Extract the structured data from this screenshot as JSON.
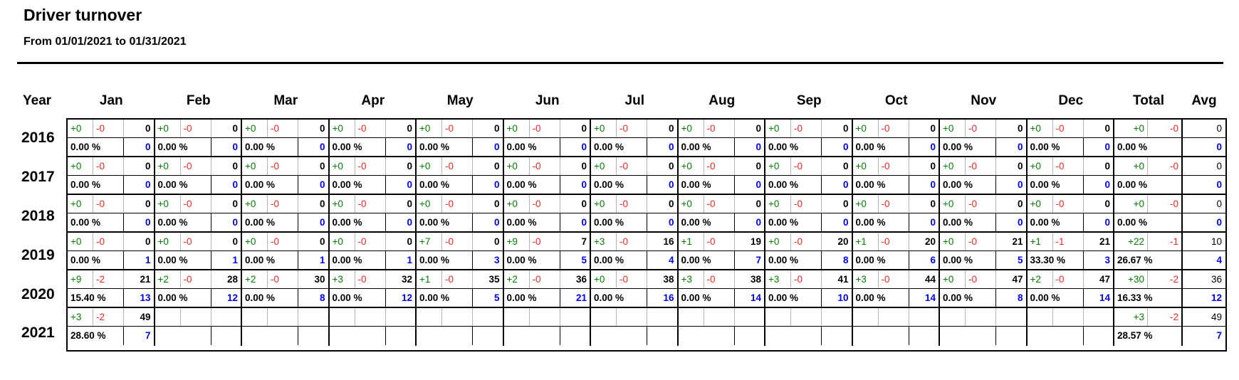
{
  "header": {
    "title": "Driver turnover",
    "subtitle": "From 01/01/2021 to 01/31/2021"
  },
  "colors": {
    "gain_green": "#008000",
    "loss_red": "#ff2222",
    "blue_value": "#0000f0",
    "border_black": "#000000",
    "divider_gray": "#b4b4b4"
  },
  "table": {
    "year_header": "Year",
    "month_headers": [
      "Jan",
      "Feb",
      "Mar",
      "Apr",
      "May",
      "Jun",
      "Jul",
      "Aug",
      "Sep",
      "Oct",
      "Nov",
      "Dec"
    ],
    "total_header": "Total",
    "avg_header": "Avg",
    "years": [
      {
        "year": "2016",
        "months": [
          {
            "gain": "+0",
            "loss": "-0",
            "count": "0",
            "pct": "0.00 %",
            "num": "0"
          },
          {
            "gain": "+0",
            "loss": "-0",
            "count": "0",
            "pct": "0.00 %",
            "num": "0"
          },
          {
            "gain": "+0",
            "loss": "-0",
            "count": "0",
            "pct": "0.00 %",
            "num": "0"
          },
          {
            "gain": "+0",
            "loss": "-0",
            "count": "0",
            "pct": "0.00 %",
            "num": "0"
          },
          {
            "gain": "+0",
            "loss": "-0",
            "count": "0",
            "pct": "0.00 %",
            "num": "0"
          },
          {
            "gain": "+0",
            "loss": "-0",
            "count": "0",
            "pct": "0.00 %",
            "num": "0"
          },
          {
            "gain": "+0",
            "loss": "-0",
            "count": "0",
            "pct": "0.00 %",
            "num": "0"
          },
          {
            "gain": "+0",
            "loss": "-0",
            "count": "0",
            "pct": "0.00 %",
            "num": "0"
          },
          {
            "gain": "+0",
            "loss": "-0",
            "count": "0",
            "pct": "0.00 %",
            "num": "0"
          },
          {
            "gain": "+0",
            "loss": "-0",
            "count": "0",
            "pct": "0.00 %",
            "num": "0"
          },
          {
            "gain": "+0",
            "loss": "-0",
            "count": "0",
            "pct": "0.00 %",
            "num": "0"
          },
          {
            "gain": "+0",
            "loss": "-0",
            "count": "0",
            "pct": "0.00 %",
            "num": "0"
          }
        ],
        "total": {
          "gain": "+0",
          "loss": "-0",
          "pct": "0.00 %"
        },
        "avg": {
          "count": "0",
          "num": "0"
        }
      },
      {
        "year": "2017",
        "months": [
          {
            "gain": "+0",
            "loss": "-0",
            "count": "0",
            "pct": "0.00 %",
            "num": "0"
          },
          {
            "gain": "+0",
            "loss": "-0",
            "count": "0",
            "pct": "0.00 %",
            "num": "0"
          },
          {
            "gain": "+0",
            "loss": "-0",
            "count": "0",
            "pct": "0.00 %",
            "num": "0"
          },
          {
            "gain": "+0",
            "loss": "-0",
            "count": "0",
            "pct": "0.00 %",
            "num": "0"
          },
          {
            "gain": "+0",
            "loss": "-0",
            "count": "0",
            "pct": "0.00 %",
            "num": "0"
          },
          {
            "gain": "+0",
            "loss": "-0",
            "count": "0",
            "pct": "0.00 %",
            "num": "0"
          },
          {
            "gain": "+0",
            "loss": "-0",
            "count": "0",
            "pct": "0.00 %",
            "num": "0"
          },
          {
            "gain": "+0",
            "loss": "-0",
            "count": "0",
            "pct": "0.00 %",
            "num": "0"
          },
          {
            "gain": "+0",
            "loss": "-0",
            "count": "0",
            "pct": "0.00 %",
            "num": "0"
          },
          {
            "gain": "+0",
            "loss": "-0",
            "count": "0",
            "pct": "0.00 %",
            "num": "0"
          },
          {
            "gain": "+0",
            "loss": "-0",
            "count": "0",
            "pct": "0.00 %",
            "num": "0"
          },
          {
            "gain": "+0",
            "loss": "-0",
            "count": "0",
            "pct": "0.00 %",
            "num": "0"
          }
        ],
        "total": {
          "gain": "+0",
          "loss": "-0",
          "pct": "0.00 %"
        },
        "avg": {
          "count": "0",
          "num": "0"
        }
      },
      {
        "year": "2018",
        "months": [
          {
            "gain": "+0",
            "loss": "-0",
            "count": "0",
            "pct": "0.00 %",
            "num": "0"
          },
          {
            "gain": "+0",
            "loss": "-0",
            "count": "0",
            "pct": "0.00 %",
            "num": "0"
          },
          {
            "gain": "+0",
            "loss": "-0",
            "count": "0",
            "pct": "0.00 %",
            "num": "0"
          },
          {
            "gain": "+0",
            "loss": "-0",
            "count": "0",
            "pct": "0.00 %",
            "num": "0"
          },
          {
            "gain": "+0",
            "loss": "-0",
            "count": "0",
            "pct": "0.00 %",
            "num": "0"
          },
          {
            "gain": "+0",
            "loss": "-0",
            "count": "0",
            "pct": "0.00 %",
            "num": "0"
          },
          {
            "gain": "+0",
            "loss": "-0",
            "count": "0",
            "pct": "0.00 %",
            "num": "0"
          },
          {
            "gain": "+0",
            "loss": "-0",
            "count": "0",
            "pct": "0.00 %",
            "num": "0"
          },
          {
            "gain": "+0",
            "loss": "-0",
            "count": "0",
            "pct": "0.00 %",
            "num": "0"
          },
          {
            "gain": "+0",
            "loss": "-0",
            "count": "0",
            "pct": "0.00 %",
            "num": "0"
          },
          {
            "gain": "+0",
            "loss": "-0",
            "count": "0",
            "pct": "0.00 %",
            "num": "0"
          },
          {
            "gain": "+0",
            "loss": "-0",
            "count": "0",
            "pct": "0.00 %",
            "num": "0"
          }
        ],
        "total": {
          "gain": "+0",
          "loss": "-0",
          "pct": "0.00 %"
        },
        "avg": {
          "count": "0",
          "num": "0"
        }
      },
      {
        "year": "2019",
        "months": [
          {
            "gain": "+0",
            "loss": "-0",
            "count": "0",
            "pct": "0.00 %",
            "num": "1"
          },
          {
            "gain": "+0",
            "loss": "-0",
            "count": "0",
            "pct": "0.00 %",
            "num": "1"
          },
          {
            "gain": "+0",
            "loss": "-0",
            "count": "0",
            "pct": "0.00 %",
            "num": "1"
          },
          {
            "gain": "+0",
            "loss": "-0",
            "count": "0",
            "pct": "0.00 %",
            "num": "1"
          },
          {
            "gain": "+7",
            "loss": "-0",
            "count": "0",
            "pct": "0.00 %",
            "num": "3"
          },
          {
            "gain": "+9",
            "loss": "-0",
            "count": "7",
            "pct": "0.00 %",
            "num": "5"
          },
          {
            "gain": "+3",
            "loss": "-0",
            "count": "16",
            "pct": "0.00 %",
            "num": "4"
          },
          {
            "gain": "+1",
            "loss": "-0",
            "count": "19",
            "pct": "0.00 %",
            "num": "7"
          },
          {
            "gain": "+0",
            "loss": "-0",
            "count": "20",
            "pct": "0.00 %",
            "num": "8"
          },
          {
            "gain": "+1",
            "loss": "-0",
            "count": "20",
            "pct": "0.00 %",
            "num": "6"
          },
          {
            "gain": "+0",
            "loss": "-0",
            "count": "21",
            "pct": "0.00 %",
            "num": "5"
          },
          {
            "gain": "+1",
            "loss": "-1",
            "count": "21",
            "pct": "33.30 %",
            "num": "3"
          }
        ],
        "total": {
          "gain": "+22",
          "loss": "-1",
          "pct": "26.67 %"
        },
        "avg": {
          "count": "10",
          "num": "4"
        }
      },
      {
        "year": "2020",
        "months": [
          {
            "gain": "+9",
            "loss": "-2",
            "count": "21",
            "pct": "15.40 %",
            "num": "13"
          },
          {
            "gain": "+2",
            "loss": "-0",
            "count": "28",
            "pct": "0.00 %",
            "num": "12"
          },
          {
            "gain": "+2",
            "loss": "-0",
            "count": "30",
            "pct": "0.00 %",
            "num": "8"
          },
          {
            "gain": "+3",
            "loss": "-0",
            "count": "32",
            "pct": "0.00 %",
            "num": "12"
          },
          {
            "gain": "+1",
            "loss": "-0",
            "count": "35",
            "pct": "0.00 %",
            "num": "5"
          },
          {
            "gain": "+2",
            "loss": "-0",
            "count": "36",
            "pct": "0.00 %",
            "num": "21"
          },
          {
            "gain": "+0",
            "loss": "-0",
            "count": "38",
            "pct": "0.00 %",
            "num": "16"
          },
          {
            "gain": "+3",
            "loss": "-0",
            "count": "38",
            "pct": "0.00 %",
            "num": "14"
          },
          {
            "gain": "+3",
            "loss": "-0",
            "count": "41",
            "pct": "0.00 %",
            "num": "10"
          },
          {
            "gain": "+3",
            "loss": "-0",
            "count": "44",
            "pct": "0.00 %",
            "num": "14"
          },
          {
            "gain": "+0",
            "loss": "-0",
            "count": "47",
            "pct": "0.00 %",
            "num": "8"
          },
          {
            "gain": "+2",
            "loss": "-0",
            "count": "47",
            "pct": "0.00 %",
            "num": "14"
          }
        ],
        "total": {
          "gain": "+30",
          "loss": "-2",
          "pct": "16.33 %"
        },
        "avg": {
          "count": "36",
          "num": "12"
        }
      },
      {
        "year": "2021",
        "months": [
          {
            "gain": "+3",
            "loss": "-2",
            "count": "49",
            "pct": "28.60 %",
            "num": "7"
          },
          {
            "gain": "",
            "loss": "",
            "count": "",
            "pct": "",
            "num": ""
          },
          {
            "gain": "",
            "loss": "",
            "count": "",
            "pct": "",
            "num": ""
          },
          {
            "gain": "",
            "loss": "",
            "count": "",
            "pct": "",
            "num": ""
          },
          {
            "gain": "",
            "loss": "",
            "count": "",
            "pct": "",
            "num": ""
          },
          {
            "gain": "",
            "loss": "",
            "count": "",
            "pct": "",
            "num": ""
          },
          {
            "gain": "",
            "loss": "",
            "count": "",
            "pct": "",
            "num": ""
          },
          {
            "gain": "",
            "loss": "",
            "count": "",
            "pct": "",
            "num": ""
          },
          {
            "gain": "",
            "loss": "",
            "count": "",
            "pct": "",
            "num": ""
          },
          {
            "gain": "",
            "loss": "",
            "count": "",
            "pct": "",
            "num": ""
          },
          {
            "gain": "",
            "loss": "",
            "count": "",
            "pct": "",
            "num": ""
          },
          {
            "gain": "",
            "loss": "",
            "count": "",
            "pct": "",
            "num": ""
          }
        ],
        "total": {
          "gain": "+3",
          "loss": "-2",
          "pct": "28.57 %"
        },
        "avg": {
          "count": "49",
          "num": "7"
        }
      }
    ]
  }
}
